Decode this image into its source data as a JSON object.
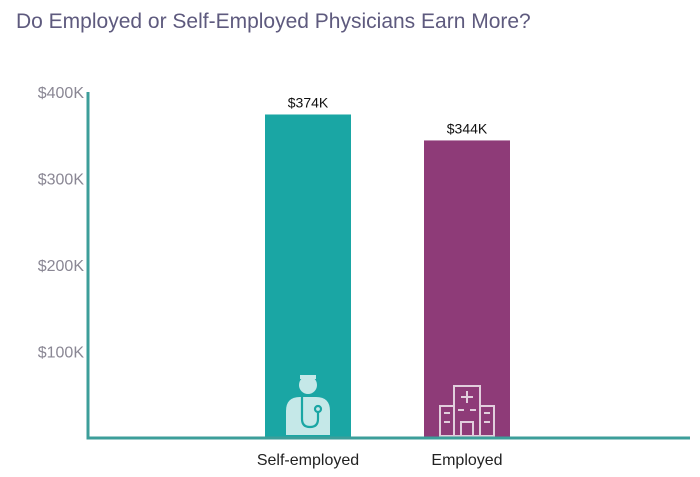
{
  "chart_data": {
    "type": "bar",
    "title": "Do Employed or Self-Employed Physicians Earn More?",
    "categories": [
      "Self-employed",
      "Employed"
    ],
    "values": [
      374,
      344
    ],
    "data_labels": [
      "$374K",
      "$344K"
    ],
    "yticks": [
      {
        "value": 100,
        "label": "$100K"
      },
      {
        "value": 200,
        "label": "$200K"
      },
      {
        "value": 300,
        "label": "$300K"
      },
      {
        "value": 400,
        "label": "$400K"
      }
    ],
    "ylim": [
      0,
      400
    ],
    "unit": "$K",
    "grid": false,
    "legend": "none",
    "icons": [
      "doctor-icon",
      "hospital-icon"
    ],
    "colors": {
      "bars": [
        "#1aa6a4",
        "#8e3b78"
      ],
      "axis": "#3c9e9a",
      "title": "#5e5a7e",
      "tick": "#8a8794",
      "icon": "#ffffff"
    }
  }
}
